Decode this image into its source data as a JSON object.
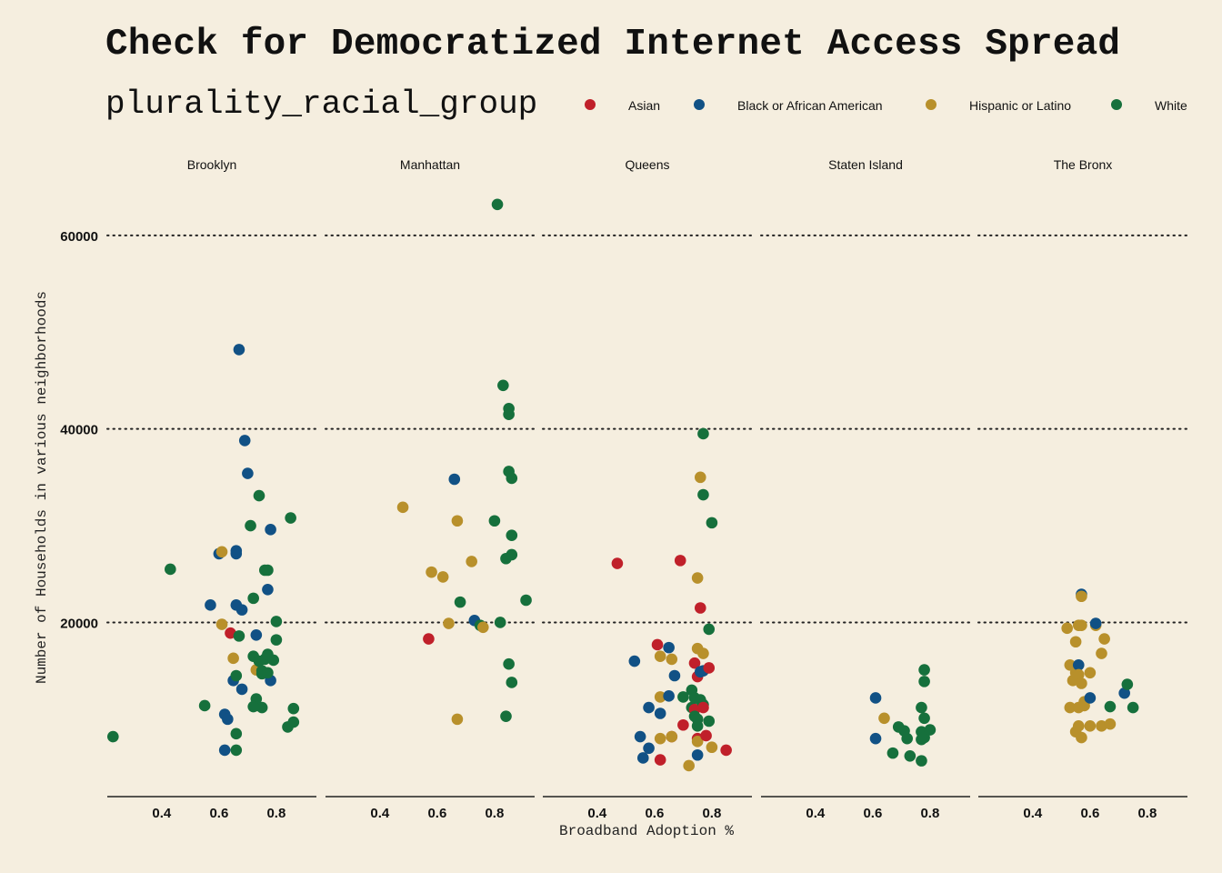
{
  "chart_data": {
    "type": "scatter",
    "title": "Check for Democratized Internet Access Spread",
    "xlabel": "Broadband Adoption %",
    "ylabel": "Number of Households in various neighborhoods",
    "legend_title": "plurality_racial_group",
    "legend_position": "top",
    "grid": "horizontal dotted",
    "xlim": [
      0.21,
      0.94
    ],
    "ylim": [
      2000,
      66000
    ],
    "x_ticks": [
      0.4,
      0.6,
      0.8
    ],
    "x_tick_labels": [
      "0.4",
      "0.6",
      "0.8"
    ],
    "y_ticks": [
      20000,
      40000,
      60000
    ],
    "y_tick_labels": [
      "20000",
      "40000",
      "60000"
    ],
    "groups": [
      {
        "name": "Asian",
        "color": "#c0202a"
      },
      {
        "name": "Black or African American",
        "color": "#115185"
      },
      {
        "name": "Hispanic or Latino",
        "color": "#b8902b"
      },
      {
        "name": "White",
        "color": "#16703c"
      }
    ],
    "facets": [
      {
        "name": "Brooklyn",
        "points": [
          [
            0.23,
            8200,
            3
          ],
          [
            0.43,
            25500,
            3
          ],
          [
            0.55,
            11400,
            3
          ],
          [
            0.6,
            27100,
            1
          ],
          [
            0.61,
            27300,
            2
          ],
          [
            0.61,
            19800,
            2
          ],
          [
            0.62,
            10500,
            1
          ],
          [
            0.62,
            6800,
            1
          ],
          [
            0.63,
            10000,
            1
          ],
          [
            0.64,
            18900,
            0
          ],
          [
            0.65,
            14000,
            1
          ],
          [
            0.65,
            16300,
            2
          ],
          [
            0.66,
            27100,
            1
          ],
          [
            0.66,
            27400,
            1
          ],
          [
            0.66,
            14500,
            3
          ],
          [
            0.66,
            21800,
            1
          ],
          [
            0.67,
            18600,
            3
          ],
          [
            0.66,
            8500,
            3
          ],
          [
            0.66,
            6800,
            3
          ],
          [
            0.67,
            48200,
            1
          ],
          [
            0.68,
            13100,
            1
          ],
          [
            0.68,
            21300,
            1
          ],
          [
            0.69,
            38800,
            1
          ],
          [
            0.7,
            35400,
            1
          ],
          [
            0.71,
            30000,
            3
          ],
          [
            0.72,
            22500,
            3
          ],
          [
            0.72,
            16500,
            3
          ],
          [
            0.73,
            18700,
            1
          ],
          [
            0.73,
            12100,
            3
          ],
          [
            0.73,
            11400,
            3
          ],
          [
            0.73,
            15100,
            2
          ],
          [
            0.74,
            16000,
            3
          ],
          [
            0.74,
            33100,
            3
          ],
          [
            0.75,
            11200,
            3
          ],
          [
            0.75,
            14700,
            3
          ],
          [
            0.76,
            16200,
            3
          ],
          [
            0.76,
            25400,
            3
          ],
          [
            0.77,
            25400,
            3
          ],
          [
            0.77,
            23400,
            1
          ],
          [
            0.77,
            16700,
            3
          ],
          [
            0.78,
            29600,
            1
          ],
          [
            0.78,
            14000,
            1
          ],
          [
            0.8,
            20100,
            3
          ],
          [
            0.8,
            18200,
            3
          ],
          [
            0.79,
            16100,
            3
          ],
          [
            0.84,
            9200,
            3
          ],
          [
            0.85,
            30800,
            3
          ],
          [
            0.86,
            9700,
            3
          ],
          [
            0.86,
            11100,
            3
          ],
          [
            0.57,
            21800,
            1
          ],
          [
            0.72,
            11300,
            3
          ],
          [
            0.75,
            15000,
            3
          ],
          [
            0.77,
            14800,
            3
          ]
        ]
      },
      {
        "name": "Manhattan",
        "points": [
          [
            0.48,
            31900,
            2
          ],
          [
            0.57,
            18300,
            0
          ],
          [
            0.58,
            25200,
            2
          ],
          [
            0.62,
            24700,
            2
          ],
          [
            0.64,
            19900,
            2
          ],
          [
            0.66,
            34800,
            1
          ],
          [
            0.67,
            30500,
            2
          ],
          [
            0.67,
            10000,
            2
          ],
          [
            0.68,
            22100,
            3
          ],
          [
            0.72,
            26300,
            2
          ],
          [
            0.73,
            20200,
            1
          ],
          [
            0.75,
            19700,
            3
          ],
          [
            0.76,
            19500,
            2
          ],
          [
            0.8,
            30500,
            3
          ],
          [
            0.81,
            63200,
            3
          ],
          [
            0.82,
            20000,
            3
          ],
          [
            0.83,
            44500,
            3
          ],
          [
            0.84,
            26600,
            3
          ],
          [
            0.84,
            10300,
            3
          ],
          [
            0.85,
            42100,
            3
          ],
          [
            0.85,
            41500,
            3
          ],
          [
            0.85,
            35600,
            3
          ],
          [
            0.86,
            34900,
            3
          ],
          [
            0.86,
            29000,
            3
          ],
          [
            0.86,
            27000,
            3
          ],
          [
            0.85,
            15700,
            3
          ],
          [
            0.86,
            13800,
            3
          ],
          [
            0.91,
            22300,
            3
          ]
        ]
      },
      {
        "name": "Queens",
        "points": [
          [
            0.47,
            26100,
            0
          ],
          [
            0.53,
            16000,
            1
          ],
          [
            0.55,
            8200,
            1
          ],
          [
            0.56,
            6000,
            1
          ],
          [
            0.58,
            7000,
            1
          ],
          [
            0.58,
            11200,
            1
          ],
          [
            0.61,
            17700,
            0
          ],
          [
            0.62,
            12300,
            2
          ],
          [
            0.62,
            16500,
            2
          ],
          [
            0.62,
            10600,
            1
          ],
          [
            0.62,
            8000,
            2
          ],
          [
            0.62,
            5800,
            0
          ],
          [
            0.65,
            17400,
            1
          ],
          [
            0.65,
            12400,
            1
          ],
          [
            0.66,
            8200,
            0
          ],
          [
            0.66,
            8200,
            2
          ],
          [
            0.66,
            16200,
            2
          ],
          [
            0.67,
            14500,
            1
          ],
          [
            0.69,
            26400,
            0
          ],
          [
            0.7,
            9400,
            0
          ],
          [
            0.7,
            12300,
            3
          ],
          [
            0.72,
            5200,
            2
          ],
          [
            0.73,
            13000,
            3
          ],
          [
            0.73,
            11200,
            3
          ],
          [
            0.74,
            11000,
            0
          ],
          [
            0.74,
            10300,
            3
          ],
          [
            0.74,
            12200,
            3
          ],
          [
            0.74,
            15800,
            0
          ],
          [
            0.75,
            24600,
            2
          ],
          [
            0.75,
            17300,
            2
          ],
          [
            0.75,
            14400,
            0
          ],
          [
            0.75,
            9300,
            3
          ],
          [
            0.75,
            10000,
            3
          ],
          [
            0.75,
            6300,
            1
          ],
          [
            0.75,
            8000,
            0
          ],
          [
            0.75,
            7700,
            2
          ],
          [
            0.76,
            35000,
            2
          ],
          [
            0.76,
            21500,
            0
          ],
          [
            0.76,
            14900,
            1
          ],
          [
            0.76,
            12000,
            3
          ],
          [
            0.77,
            11500,
            3
          ],
          [
            0.77,
            16800,
            2
          ],
          [
            0.77,
            39500,
            3
          ],
          [
            0.77,
            33200,
            3
          ],
          [
            0.77,
            11200,
            0
          ],
          [
            0.77,
            15000,
            1
          ],
          [
            0.78,
            8300,
            0
          ],
          [
            0.79,
            15300,
            0
          ],
          [
            0.79,
            9800,
            3
          ],
          [
            0.79,
            19300,
            3
          ],
          [
            0.8,
            30300,
            3
          ],
          [
            0.8,
            7100,
            2
          ],
          [
            0.85,
            6800,
            0
          ]
        ]
      },
      {
        "name": "Staten Island",
        "points": [
          [
            0.61,
            8000,
            1
          ],
          [
            0.61,
            12200,
            1
          ],
          [
            0.64,
            10100,
            2
          ],
          [
            0.67,
            6500,
            3
          ],
          [
            0.69,
            9200,
            3
          ],
          [
            0.71,
            8800,
            3
          ],
          [
            0.72,
            8000,
            3
          ],
          [
            0.73,
            6200,
            3
          ],
          [
            0.77,
            5700,
            3
          ],
          [
            0.77,
            11200,
            3
          ],
          [
            0.77,
            8700,
            3
          ],
          [
            0.77,
            7900,
            3
          ],
          [
            0.78,
            8100,
            3
          ],
          [
            0.78,
            15100,
            3
          ],
          [
            0.78,
            13900,
            3
          ],
          [
            0.78,
            10100,
            3
          ],
          [
            0.8,
            8900,
            3
          ]
        ]
      },
      {
        "name": "The Bronx",
        "points": [
          [
            0.52,
            19400,
            2
          ],
          [
            0.53,
            15600,
            2
          ],
          [
            0.53,
            11200,
            2
          ],
          [
            0.54,
            14000,
            2
          ],
          [
            0.55,
            18000,
            2
          ],
          [
            0.55,
            14800,
            2
          ],
          [
            0.55,
            8700,
            2
          ],
          [
            0.56,
            19700,
            2
          ],
          [
            0.56,
            15600,
            1
          ],
          [
            0.56,
            14600,
            2
          ],
          [
            0.56,
            11200,
            2
          ],
          [
            0.56,
            9300,
            2
          ],
          [
            0.57,
            8100,
            2
          ],
          [
            0.57,
            19700,
            2
          ],
          [
            0.57,
            22900,
            1
          ],
          [
            0.57,
            22700,
            2
          ],
          [
            0.57,
            13700,
            2
          ],
          [
            0.58,
            11800,
            2
          ],
          [
            0.58,
            11400,
            2
          ],
          [
            0.6,
            9300,
            2
          ],
          [
            0.6,
            14800,
            2
          ],
          [
            0.6,
            12200,
            1
          ],
          [
            0.62,
            19700,
            2
          ],
          [
            0.62,
            19900,
            1
          ],
          [
            0.64,
            9300,
            2
          ],
          [
            0.64,
            16800,
            2
          ],
          [
            0.65,
            18300,
            2
          ],
          [
            0.67,
            9500,
            2
          ],
          [
            0.67,
            11300,
            3
          ],
          [
            0.72,
            12700,
            1
          ],
          [
            0.73,
            13600,
            3
          ],
          [
            0.75,
            11200,
            3
          ]
        ]
      }
    ]
  }
}
